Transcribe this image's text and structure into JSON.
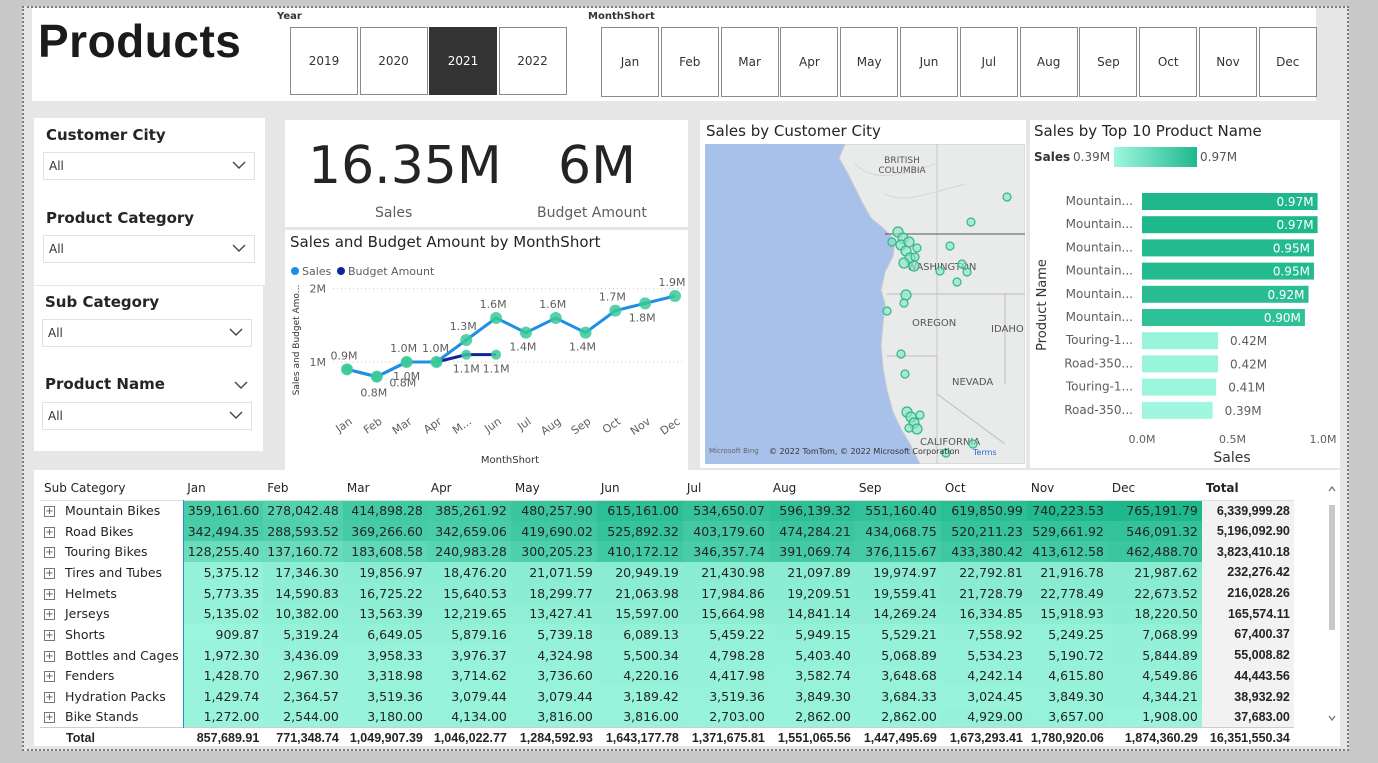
{
  "header": {
    "title": "Products"
  },
  "year_slicer": {
    "label": "Year",
    "options": [
      "2019",
      "2020",
      "2021",
      "2022"
    ],
    "selected": "2021"
  },
  "month_slicer": {
    "label": "MonthShort",
    "options": [
      "Jan",
      "Feb",
      "Mar",
      "Apr",
      "May",
      "Jun",
      "Jul",
      "Aug",
      "Sep",
      "Oct",
      "Nov",
      "Dec"
    ]
  },
  "filters": [
    {
      "title": "Customer City",
      "value": "All"
    },
    {
      "title": "Product Category",
      "value": "All"
    },
    {
      "title": "Sub Category",
      "value": "All"
    },
    {
      "title": "Product Name",
      "value": "All"
    }
  ],
  "cards": {
    "sales_value": "16.35M",
    "sales_label": "Sales",
    "budget_value": "6M",
    "budget_label": "Budget Amount"
  },
  "line_chart": {
    "title": "Sales and Budget Amount by MonthShort",
    "legend": [
      "Sales",
      "Budget Amount"
    ],
    "colors": {
      "sales": "#1f8fe5",
      "budget": "#12239e",
      "marker": "#39c99a"
    },
    "chart_data": {
      "type": "line",
      "x": [
        "Jan",
        "Feb",
        "Mar",
        "Apr",
        "May",
        "Jun",
        "Jul",
        "Aug",
        "Sep",
        "Oct",
        "Nov",
        "Dec"
      ],
      "series": [
        {
          "name": "Sales",
          "values": [
            0.9,
            0.8,
            1.0,
            1.0,
            1.3,
            1.6,
            1.4,
            1.6,
            1.4,
            1.7,
            1.8,
            1.9
          ],
          "labels": [
            "0.9M",
            "0.8M",
            "1.0M",
            "1.0M",
            "1.3M",
            "1.6M",
            "1.4M",
            "1.6M",
            "1.4M",
            "1.7M",
            "1.8M",
            "1.9M"
          ]
        },
        {
          "name": "Budget Amount",
          "values": [
            0.9,
            0.8,
            1.0,
            1.0,
            1.1,
            1.1,
            null,
            null,
            null,
            null,
            null,
            null
          ],
          "labels": [
            "",
            "0.8M",
            "1.0M",
            "",
            "1.1M",
            "1.1M",
            "",
            "",
            "",
            "",
            "",
            ""
          ]
        }
      ],
      "xlabel": "MonthShort",
      "ylabel": "Sales and Budget Amo...",
      "yticks": [
        "1M",
        "2M"
      ],
      "ylim": [
        0.55,
        2.05
      ]
    }
  },
  "map": {
    "title": "Sales by Customer City",
    "labels": [
      "BRITISH COLUMBIA",
      "WASHINGTON",
      "OREGON",
      "IDAHO",
      "NEVADA",
      "CALIFORNIA"
    ],
    "attribution": "© 2022 TomTom, © 2022 Microsoft Corporation",
    "terms": "Terms",
    "brand": "Microsoft Bing"
  },
  "bar_chart": {
    "title": "Sales by Top 10 Product Name",
    "legend_label": "Sales",
    "legend_min": "0.39M",
    "legend_max": "0.97M",
    "ylabel": "Product Name",
    "xlabel": "Sales",
    "xticks": [
      "0.0M",
      "0.5M",
      "1.0M"
    ],
    "chart_data": {
      "type": "bar",
      "categories": [
        "Mountain...",
        "Mountain...",
        "Mountain...",
        "Mountain...",
        "Mountain...",
        "Mountain...",
        "Touring-1...",
        "Road-350...",
        "Touring-1...",
        "Road-350..."
      ],
      "values": [
        0.97,
        0.97,
        0.95,
        0.95,
        0.92,
        0.9,
        0.42,
        0.42,
        0.41,
        0.39
      ],
      "labels": [
        "0.97M",
        "0.97M",
        "0.95M",
        "0.95M",
        "0.92M",
        "0.90M",
        "0.42M",
        "0.42M",
        "0.41M",
        "0.39M"
      ],
      "xlim": [
        0,
        1.0
      ]
    }
  },
  "matrix": {
    "corner": "Sub Category",
    "columns": [
      "Jan",
      "Feb",
      "Mar",
      "Apr",
      "May",
      "Jun",
      "Jul",
      "Aug",
      "Sep",
      "Oct",
      "Nov",
      "Dec",
      "Total"
    ],
    "rows": [
      {
        "name": "Mountain Bikes",
        "cells": [
          "359,161.60",
          "278,042.48",
          "414,898.28",
          "385,261.92",
          "480,257.90",
          "615,161.00",
          "534,650.07",
          "596,139.32",
          "551,160.40",
          "619,850.99",
          "740,223.53",
          "765,191.79"
        ],
        "total": "6,339,999.28"
      },
      {
        "name": "Road Bikes",
        "cells": [
          "342,494.35",
          "288,593.52",
          "369,266.60",
          "342,659.06",
          "419,690.02",
          "525,892.32",
          "403,179.60",
          "474,284.21",
          "434,068.75",
          "520,211.23",
          "529,661.92",
          "546,091.32"
        ],
        "total": "5,196,092.90"
      },
      {
        "name": "Touring Bikes",
        "cells": [
          "128,255.40",
          "137,160.72",
          "183,608.58",
          "240,983.28",
          "300,205.23",
          "410,172.12",
          "346,357.74",
          "391,069.74",
          "376,115.67",
          "433,380.42",
          "413,612.58",
          "462,488.70"
        ],
        "total": "3,823,410.18"
      },
      {
        "name": "Tires and Tubes",
        "cells": [
          "5,375.12",
          "17,346.30",
          "19,856.97",
          "18,476.20",
          "21,071.59",
          "20,949.19",
          "21,430.98",
          "21,097.89",
          "19,974.97",
          "22,792.81",
          "21,916.78",
          "21,987.62"
        ],
        "total": "232,276.42"
      },
      {
        "name": "Helmets",
        "cells": [
          "5,773.35",
          "14,590.83",
          "16,725.22",
          "15,640.53",
          "18,299.77",
          "21,063.98",
          "17,984.86",
          "19,209.51",
          "19,559.41",
          "21,728.79",
          "22,778.49",
          "22,673.52"
        ],
        "total": "216,028.26"
      },
      {
        "name": "Jerseys",
        "cells": [
          "5,135.02",
          "10,382.00",
          "13,563.39",
          "12,219.65",
          "13,427.41",
          "15,597.00",
          "15,664.98",
          "14,841.14",
          "14,269.24",
          "16,334.85",
          "15,918.93",
          "18,220.50"
        ],
        "total": "165,574.11"
      },
      {
        "name": "Shorts",
        "cells": [
          "909.87",
          "5,319.24",
          "6,649.05",
          "5,879.16",
          "5,739.18",
          "6,089.13",
          "5,459.22",
          "5,949.15",
          "5,529.21",
          "7,558.92",
          "5,249.25",
          "7,068.99"
        ],
        "total": "67,400.37"
      },
      {
        "name": "Bottles and Cages",
        "cells": [
          "1,972.30",
          "3,436.09",
          "3,958.33",
          "3,976.37",
          "4,324.98",
          "5,500.34",
          "4,798.28",
          "5,403.40",
          "5,068.89",
          "5,534.23",
          "5,190.72",
          "5,844.89"
        ],
        "total": "55,008.82"
      },
      {
        "name": "Fenders",
        "cells": [
          "1,428.70",
          "2,967.30",
          "3,318.98",
          "3,714.62",
          "3,736.60",
          "4,220.16",
          "4,417.98",
          "3,582.74",
          "3,648.68",
          "4,242.14",
          "4,615.80",
          "4,549.86"
        ],
        "total": "44,443.56"
      },
      {
        "name": "Hydration Packs",
        "cells": [
          "1,429.74",
          "2,364.57",
          "3,519.36",
          "3,079.44",
          "3,079.44",
          "3,189.42",
          "3,519.36",
          "3,849.30",
          "3,684.33",
          "3,024.45",
          "3,849.30",
          "4,344.21"
        ],
        "total": "38,932.92"
      },
      {
        "name": "Bike Stands",
        "cells": [
          "1,272.00",
          "2,544.00",
          "3,180.00",
          "4,134.00",
          "3,816.00",
          "3,816.00",
          "2,703.00",
          "2,862.00",
          "2,862.00",
          "4,929.00",
          "3,657.00",
          "1,908.00"
        ],
        "total": "37,683.00"
      }
    ],
    "total_row": {
      "name": "Total",
      "cells": [
        "857,689.91",
        "771,348.74",
        "1,049,907.39",
        "1,046,022.77",
        "1,284,592.93",
        "1,643,177.78",
        "1,371,675.81",
        "1,551,065.56",
        "1,447,495.69",
        "1,673,293.41",
        "1,780,920.06",
        "1,874,360.29"
      ],
      "total": "16,351,550.34"
    },
    "colors": {
      "high": "#1fb88d",
      "low": "#9ff7df"
    }
  }
}
